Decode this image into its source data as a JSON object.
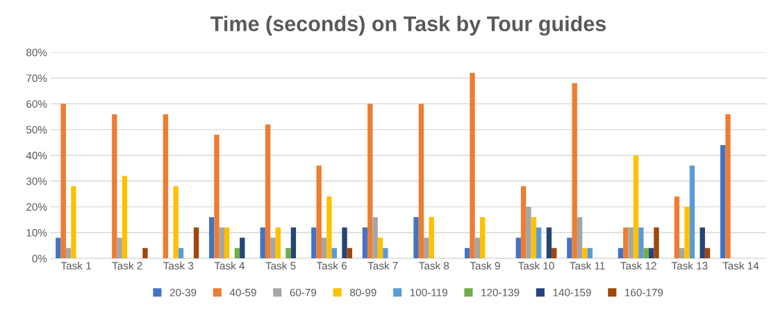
{
  "chart_data": {
    "type": "bar",
    "title": "Time (seconds) on Task by Tour guides",
    "categories": [
      "Task 1",
      "Task 2",
      "Task 3",
      "Task 4",
      "Task 5",
      "Task 6",
      "Task 7",
      "Task 8",
      "Task 9",
      "Task 10",
      "Task 11",
      "Task 12",
      "Task 13",
      "Task 14"
    ],
    "series": [
      {
        "name": "20-39",
        "color": "#4472c4",
        "values": [
          8,
          0,
          0,
          16,
          12,
          12,
          12,
          16,
          4,
          8,
          8,
          4,
          0,
          44
        ]
      },
      {
        "name": "40-59",
        "color": "#ed7d31",
        "values": [
          60,
          56,
          56,
          48,
          52,
          36,
          60,
          60,
          72,
          28,
          68,
          12,
          24,
          56
        ]
      },
      {
        "name": "60-79",
        "color": "#a5a5a5",
        "values": [
          4,
          8,
          0,
          12,
          8,
          8,
          16,
          8,
          8,
          20,
          16,
          12,
          4,
          0
        ]
      },
      {
        "name": "80-99",
        "color": "#ffc000",
        "values": [
          28,
          32,
          28,
          12,
          12,
          24,
          8,
          16,
          16,
          16,
          4,
          40,
          20,
          0
        ]
      },
      {
        "name": "100-119",
        "color": "#5b9bd5",
        "values": [
          0,
          0,
          4,
          0,
          0,
          4,
          4,
          0,
          0,
          12,
          4,
          12,
          36,
          0
        ]
      },
      {
        "name": "120-139",
        "color": "#70ad47",
        "values": [
          0,
          0,
          0,
          4,
          4,
          0,
          0,
          0,
          0,
          0,
          0,
          4,
          0,
          0
        ]
      },
      {
        "name": "140-159",
        "color": "#264478",
        "values": [
          0,
          0,
          0,
          8,
          12,
          12,
          0,
          0,
          0,
          12,
          0,
          4,
          12,
          0
        ]
      },
      {
        "name": "160-179",
        "color": "#9e480e",
        "values": [
          0,
          4,
          12,
          0,
          0,
          4,
          0,
          0,
          0,
          4,
          0,
          12,
          4,
          0
        ]
      }
    ],
    "ylim": [
      0,
      80
    ],
    "yticks": [
      {
        "value": 0,
        "label": "0%"
      },
      {
        "value": 10,
        "label": "10%"
      },
      {
        "value": 20,
        "label": "20%"
      },
      {
        "value": 30,
        "label": "30%"
      },
      {
        "value": 40,
        "label": "40%"
      },
      {
        "value": 50,
        "label": "50%"
      },
      {
        "value": 60,
        "label": "60%"
      },
      {
        "value": 70,
        "label": "70%"
      },
      {
        "value": 80,
        "label": "80%"
      }
    ],
    "grid": "y",
    "legend": "bottom"
  }
}
